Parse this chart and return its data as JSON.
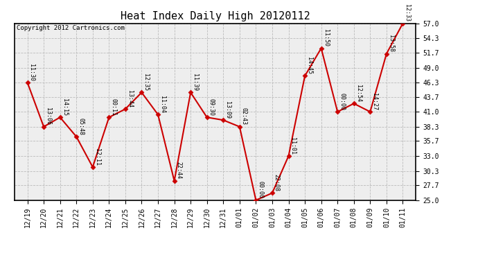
{
  "title": "Heat Index Daily High 20120112",
  "copyright": "Copyright 2012 Cartronics.com",
  "categories": [
    "12/19",
    "12/20",
    "12/21",
    "12/22",
    "12/23",
    "12/24",
    "12/25",
    "12/26",
    "12/27",
    "12/28",
    "12/29",
    "12/30",
    "12/31",
    "01/01",
    "01/02",
    "01/03",
    "01/04",
    "01/05",
    "01/06",
    "01/07",
    "01/08",
    "01/09",
    "01/10",
    "01/11"
  ],
  "values": [
    46.3,
    38.3,
    40.0,
    36.5,
    31.0,
    40.0,
    41.5,
    44.5,
    40.5,
    28.5,
    44.5,
    40.0,
    39.5,
    38.3,
    25.0,
    26.3,
    33.0,
    47.5,
    52.5,
    41.0,
    42.5,
    41.0,
    51.5,
    57.0
  ],
  "labels": [
    "11:30",
    "13:06",
    "14:15",
    "05:48",
    "12:11",
    "00:11",
    "13:44",
    "12:35",
    "11:04",
    "22:44",
    "11:39",
    "09:30",
    "13:09",
    "02:43",
    "00:00",
    "22:08",
    "11:01",
    "14:45",
    "11:50",
    "00:00",
    "12:54",
    "14:27",
    "13:58",
    "12:33"
  ],
  "ylim": [
    25.0,
    57.0
  ],
  "yticks": [
    25.0,
    27.7,
    30.3,
    33.0,
    35.7,
    38.3,
    41.0,
    43.7,
    46.3,
    49.0,
    51.7,
    54.3,
    57.0
  ],
  "line_color": "#cc0000",
  "marker_color": "#cc0000",
  "grid_color": "#bbbbbb",
  "bg_color": "#ffffff",
  "plot_bg_color": "#eeeeee",
  "title_fontsize": 11,
  "tick_fontsize": 7,
  "annot_fontsize": 6
}
